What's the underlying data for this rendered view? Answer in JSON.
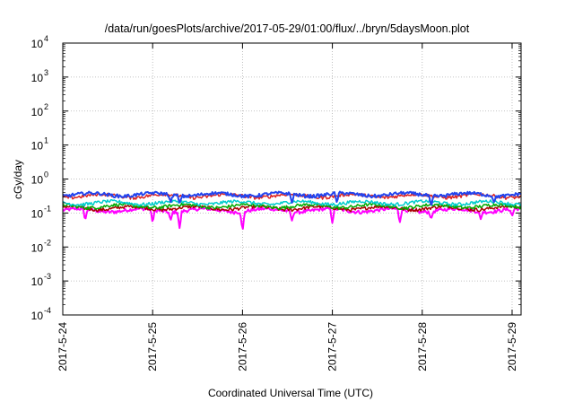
{
  "chart_data": {
    "type": "line",
    "title": "/data/run/goesPlots/archive/2017-05-29/01:00/flux/../bryn/5daysMoon.plot",
    "xlabel": "Coordinated Universal Time (UTC)",
    "ylabel": "cGy/day",
    "yscale": "log",
    "ylim_exponent": [
      -4,
      4
    ],
    "xlim_days": [
      0,
      5.1
    ],
    "grid": true,
    "legend": "none",
    "y_ticks": [
      {
        "base": "10",
        "exp": "-4"
      },
      {
        "base": "10",
        "exp": "-3"
      },
      {
        "base": "10",
        "exp": "-2"
      },
      {
        "base": "10",
        "exp": "-1"
      },
      {
        "base": "10",
        "exp": "0"
      },
      {
        "base": "10",
        "exp": "1"
      },
      {
        "base": "10",
        "exp": "2"
      },
      {
        "base": "10",
        "exp": "3"
      },
      {
        "base": "10",
        "exp": "4"
      }
    ],
    "x_ticks": [
      "2017-5-24",
      "2017-5-25",
      "2017-5-26",
      "2017-5-27",
      "2017-5-28",
      "2017-5-29"
    ],
    "series": [
      {
        "color": "#ff00ff",
        "level": 0.12,
        "dips": [
          [
            0.25,
            0.06
          ],
          [
            1.0,
            0.05
          ],
          [
            1.2,
            0.06
          ],
          [
            1.3,
            0.035
          ],
          [
            2.0,
            0.028
          ],
          [
            2.55,
            0.06
          ],
          [
            3.0,
            0.05
          ],
          [
            3.75,
            0.05
          ],
          [
            4.1,
            0.065
          ],
          [
            4.65,
            0.065
          ],
          [
            5.0,
            0.08
          ]
        ]
      },
      {
        "color": "#aa0000",
        "level": 0.14,
        "dips": []
      },
      {
        "color": "#00aa00",
        "level": 0.16,
        "dips": []
      },
      {
        "color": "#00cccc",
        "level": 0.2,
        "dips": []
      },
      {
        "color": "#dd2222",
        "level": 0.32,
        "dips": []
      },
      {
        "color": "#2244ee",
        "level": 0.35,
        "dips": [
          [
            1.2,
            0.2
          ],
          [
            1.3,
            0.2
          ],
          [
            2.55,
            0.2
          ],
          [
            3.05,
            0.2
          ],
          [
            4.1,
            0.15
          ],
          [
            4.8,
            0.2
          ]
        ]
      }
    ]
  }
}
